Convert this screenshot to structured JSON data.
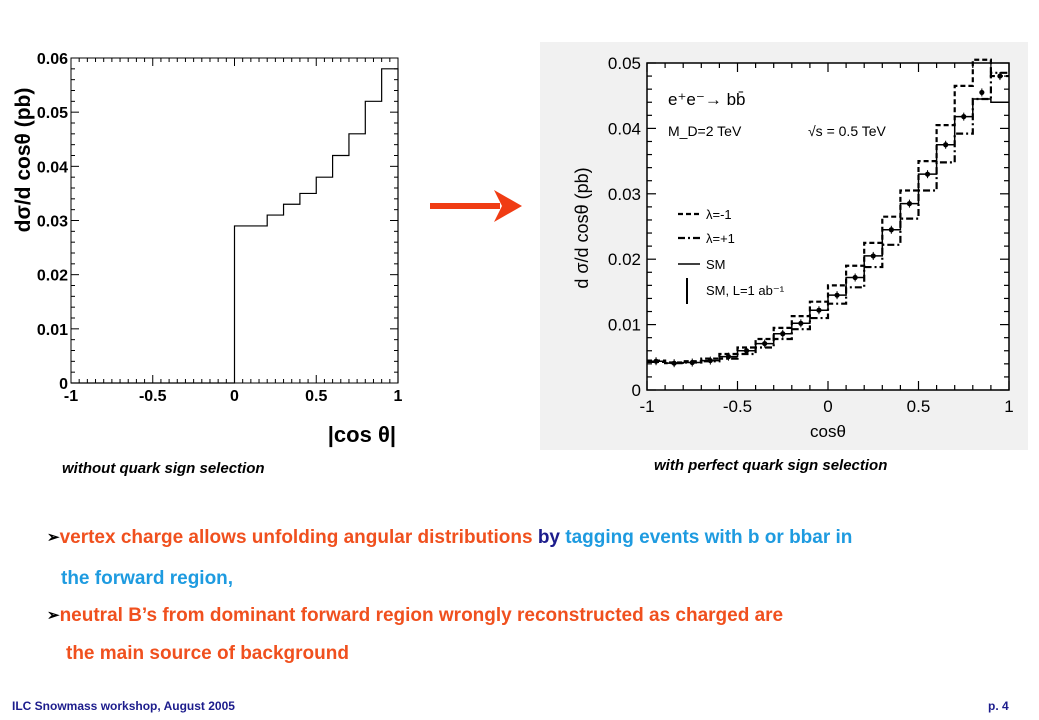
{
  "captions": {
    "left": "without quark sign selection",
    "right": "with perfect quark sign selection"
  },
  "bullets": [
    {
      "line1": [
        {
          "text": "vertex charge allows unfolding angular distributions ",
          "color": "orange"
        },
        {
          "text": "by  ",
          "color": "navy"
        },
        {
          "text": "tagging events with b or bbar in",
          "color": "cyan"
        }
      ],
      "line2": "the forward region,"
    },
    {
      "line1": [
        {
          "text": "neutral B’s from dominant forward region wrongly reconstructed as charged are",
          "color": "orange"
        }
      ],
      "line2": "the main source of background"
    }
  ],
  "footer": {
    "left": "ILC Snowmass workshop, August 2005",
    "right": "p. 4"
  },
  "colors": {
    "orange": "#f0501e",
    "navy": "#1c1c8c",
    "cyan": "#1e9be0",
    "arrow": "#f03c14"
  },
  "chart_data": [
    {
      "type": "histogram",
      "title": "",
      "xlabel": "|cos θ|",
      "ylabel": "dσ/d cosθ (pb)",
      "xlim": [
        -1,
        1
      ],
      "ylim": [
        0,
        0.06
      ],
      "xticks": [
        "-1",
        "-0.5",
        "0",
        "0.5",
        "1"
      ],
      "yticks": [
        "0",
        "0.01",
        "0.02",
        "0.03",
        "0.04",
        "0.05",
        "0.06"
      ],
      "bin_edges": [
        -1,
        -0.9,
        -0.8,
        -0.7,
        -0.6,
        -0.5,
        -0.4,
        -0.3,
        -0.2,
        -0.1,
        0,
        0.2,
        0.3,
        0.4,
        0.5,
        0.6,
        0.7,
        0.8,
        0.9,
        1.0
      ],
      "values": [
        0,
        0,
        0,
        0,
        0,
        0,
        0,
        0,
        0,
        0,
        0.029,
        0.031,
        0.033,
        0.035,
        0.038,
        0.042,
        0.046,
        0.052,
        0.058
      ]
    },
    {
      "type": "histogram",
      "title": "",
      "xlabel": "cosθ",
      "ylabel": "d σ/d cosθ (pb)",
      "xlim": [
        -1,
        1
      ],
      "ylim": [
        0,
        0.05
      ],
      "xticks": [
        "-1",
        "-0.5",
        "0",
        "0.5",
        "1"
      ],
      "yticks": [
        "0",
        "0.01",
        "0.02",
        "0.03",
        "0.04",
        "0.05"
      ],
      "annotations": [
        "e⁺e⁻→ bb̄",
        "M_D=2 TeV",
        "√s = 0.5 TeV"
      ],
      "bin_edges": [
        -1,
        -0.9,
        -0.8,
        -0.7,
        -0.6,
        -0.5,
        -0.4,
        -0.3,
        -0.2,
        -0.1,
        0,
        0.1,
        0.2,
        0.3,
        0.4,
        0.5,
        0.6,
        0.7,
        0.8,
        0.9,
        1.0
      ],
      "series": [
        {
          "name": "λ=-1",
          "style": "dashed",
          "values": [
            0.0045,
            0.0042,
            0.0044,
            0.0048,
            0.0055,
            0.0065,
            0.0078,
            0.0095,
            0.0113,
            0.0135,
            0.016,
            0.019,
            0.0225,
            0.0265,
            0.0305,
            0.035,
            0.0405,
            0.0465,
            0.0505,
            0.048
          ]
        },
        {
          "name": "λ=+1",
          "style": "dashdot",
          "values": [
            0.0043,
            0.0041,
            0.0042,
            0.0044,
            0.0048,
            0.0055,
            0.0065,
            0.0078,
            0.0093,
            0.011,
            0.0132,
            0.0157,
            0.0188,
            0.0222,
            0.0262,
            0.0305,
            0.0348,
            0.0392,
            0.0445,
            0.0485
          ]
        },
        {
          "name": "SM",
          "style": "solid",
          "values": [
            0.0044,
            0.0041,
            0.0042,
            0.0045,
            0.0051,
            0.006,
            0.0071,
            0.0086,
            0.0102,
            0.0122,
            0.0145,
            0.0172,
            0.0205,
            0.0245,
            0.0285,
            0.033,
            0.0375,
            0.0418,
            0.0445,
            0.044
          ]
        },
        {
          "name": "SM, L=1 ab⁻¹",
          "style": "points",
          "values": [
            0.0044,
            0.0041,
            0.0042,
            0.0045,
            0.0051,
            0.006,
            0.0071,
            0.0086,
            0.0102,
            0.0122,
            0.0145,
            0.0172,
            0.0205,
            0.0245,
            0.0285,
            0.033,
            0.0375,
            0.0418,
            0.0455,
            0.048
          ]
        }
      ]
    }
  ]
}
